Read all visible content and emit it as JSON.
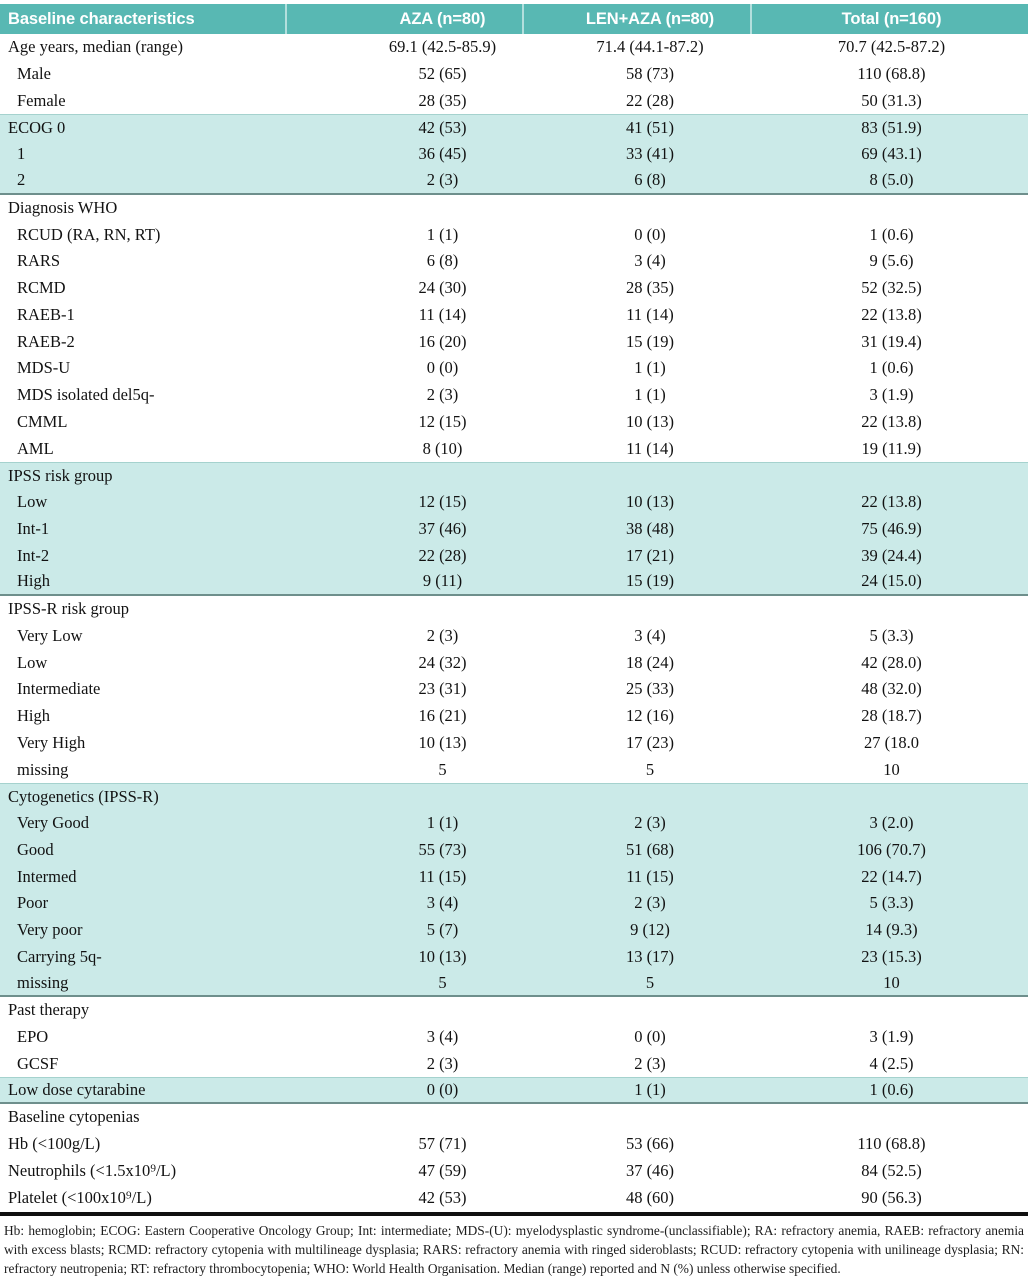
{
  "header": {
    "title": "Baseline characteristics",
    "columns": [
      "AZA (n=80)",
      "LEN+AZA (n=80)",
      "Total (n=160)"
    ]
  },
  "colors": {
    "header_bg": "#58b8b3",
    "band_bg": "#cbeae8",
    "header_text": "#ffffff"
  },
  "rows": [
    {
      "label": "Age years, median (range)",
      "indent": false,
      "band": "white",
      "values": [
        "69.1 (42.5-85.9)",
        "71.4 (44.1-87.2)",
        "70.7 (42.5-87.2)"
      ]
    },
    {
      "label": "Male",
      "indent": true,
      "band": "white",
      "values": [
        "52 (65)",
        "58 (73)",
        "110 (68.8)"
      ]
    },
    {
      "label": "Female",
      "indent": true,
      "band": "white",
      "values": [
        "28 (35)",
        "22 (28)",
        "50 (31.3)"
      ]
    },
    {
      "label": "ECOG 0",
      "indent": false,
      "band": "teal",
      "values": [
        "42 (53)",
        "41 (51)",
        "83 (51.9)"
      ]
    },
    {
      "label": "1",
      "indent": true,
      "band": "teal",
      "values": [
        "36 (45)",
        "33 (41)",
        "69 (43.1)"
      ]
    },
    {
      "label": "2",
      "indent": true,
      "band": "teal",
      "values": [
        "2 (3)",
        "6 (8)",
        "8 (5.0)"
      ]
    },
    {
      "label": "Diagnosis WHO",
      "indent": false,
      "band": "white",
      "values": [
        "",
        "",
        ""
      ]
    },
    {
      "label": "RCUD (RA, RN, RT)",
      "indent": true,
      "band": "white",
      "values": [
        "1 (1)",
        "0 (0)",
        "1 (0.6)"
      ]
    },
    {
      "label": "RARS",
      "indent": true,
      "band": "white",
      "values": [
        "6 (8)",
        "3 (4)",
        "9 (5.6)"
      ]
    },
    {
      "label": "RCMD",
      "indent": true,
      "band": "white",
      "values": [
        "24 (30)",
        "28 (35)",
        "52 (32.5)"
      ]
    },
    {
      "label": "RAEB-1",
      "indent": true,
      "band": "white",
      "values": [
        "11 (14)",
        "11 (14)",
        "22 (13.8)"
      ]
    },
    {
      "label": "RAEB-2",
      "indent": true,
      "band": "white",
      "values": [
        "16 (20)",
        "15 (19)",
        "31 (19.4)"
      ]
    },
    {
      "label": "MDS-U",
      "indent": true,
      "band": "white",
      "values": [
        "0 (0)",
        "1 (1)",
        "1 (0.6)"
      ]
    },
    {
      "label": "MDS isolated del5q-",
      "indent": true,
      "band": "white",
      "values": [
        "2 (3)",
        "1 (1)",
        "3 (1.9)"
      ]
    },
    {
      "label": "CMML",
      "indent": true,
      "band": "white",
      "values": [
        "12 (15)",
        "10 (13)",
        "22 (13.8)"
      ]
    },
    {
      "label": "AML",
      "indent": true,
      "band": "white",
      "values": [
        "8 (10)",
        "11 (14)",
        "19 (11.9)"
      ]
    },
    {
      "label": "IPSS risk group",
      "indent": false,
      "band": "teal",
      "values": [
        "",
        "",
        ""
      ]
    },
    {
      "label": "Low",
      "indent": true,
      "band": "teal",
      "values": [
        "12 (15)",
        "10 (13)",
        "22 (13.8)"
      ]
    },
    {
      "label": "Int-1",
      "indent": true,
      "band": "teal",
      "values": [
        "37 (46)",
        "38 (48)",
        "75 (46.9)"
      ]
    },
    {
      "label": "Int-2",
      "indent": true,
      "band": "teal",
      "values": [
        "22 (28)",
        "17 (21)",
        "39 (24.4)"
      ]
    },
    {
      "label": "High",
      "indent": true,
      "band": "teal",
      "values": [
        "9 (11)",
        "15 (19)",
        "24 (15.0)"
      ]
    },
    {
      "label": "IPSS-R risk group",
      "indent": false,
      "band": "white",
      "values": [
        "",
        "",
        ""
      ]
    },
    {
      "label": "Very Low",
      "indent": true,
      "band": "white",
      "values": [
        "2 (3)",
        "3 (4)",
        "5 (3.3)"
      ]
    },
    {
      "label": "Low",
      "indent": true,
      "band": "white",
      "values": [
        "24 (32)",
        "18 (24)",
        "42 (28.0)"
      ]
    },
    {
      "label": "Intermediate",
      "indent": true,
      "band": "white",
      "values": [
        "23 (31)",
        "25 (33)",
        "48 (32.0)"
      ]
    },
    {
      "label": "High",
      "indent": true,
      "band": "white",
      "values": [
        "16 (21)",
        "12 (16)",
        "28 (18.7)"
      ]
    },
    {
      "label": "Very High",
      "indent": true,
      "band": "white",
      "values": [
        "10 (13)",
        "17 (23)",
        "27 (18.0"
      ]
    },
    {
      "label": "missing",
      "indent": true,
      "band": "white",
      "values": [
        "5",
        "5",
        "10"
      ]
    },
    {
      "label": "Cytogenetics (IPSS-R)",
      "indent": false,
      "band": "teal",
      "values": [
        "",
        "",
        ""
      ]
    },
    {
      "label": "Very Good",
      "indent": true,
      "band": "teal",
      "values": [
        "1 (1)",
        "2 (3)",
        "3 (2.0)"
      ]
    },
    {
      "label": "Good",
      "indent": true,
      "band": "teal",
      "values": [
        "55 (73)",
        "51 (68)",
        "106 (70.7)"
      ]
    },
    {
      "label": "Intermed",
      "indent": true,
      "band": "teal",
      "values": [
        "11 (15)",
        "11 (15)",
        "22 (14.7)"
      ]
    },
    {
      "label": "Poor",
      "indent": true,
      "band": "teal",
      "values": [
        "3 (4)",
        "2 (3)",
        "5 (3.3)"
      ]
    },
    {
      "label": "Very poor",
      "indent": true,
      "band": "teal",
      "values": [
        "5 (7)",
        "9 (12)",
        "14 (9.3)"
      ]
    },
    {
      "label": "Carrying 5q-",
      "indent": true,
      "band": "teal",
      "values": [
        "10 (13)",
        "13 (17)",
        "23 (15.3)"
      ]
    },
    {
      "label": "missing",
      "indent": true,
      "band": "teal",
      "values": [
        "5",
        "5",
        "10"
      ]
    },
    {
      "label": "Past therapy",
      "indent": false,
      "band": "white",
      "values": [
        "",
        "",
        ""
      ]
    },
    {
      "label": "EPO",
      "indent": true,
      "band": "white",
      "values": [
        "3 (4)",
        "0 (0)",
        "3 (1.9)"
      ]
    },
    {
      "label": "GCSF",
      "indent": true,
      "band": "white",
      "values": [
        "2 (3)",
        "2 (3)",
        "4 (2.5)"
      ]
    },
    {
      "label": "Low dose cytarabine",
      "indent": false,
      "band": "teal",
      "values": [
        "0 (0)",
        "1 (1)",
        "1 (0.6)"
      ]
    },
    {
      "label": "Baseline cytopenias",
      "indent": false,
      "band": "white",
      "values": [
        "",
        "",
        ""
      ]
    },
    {
      "label": "Hb (<100g/L)",
      "indent": false,
      "band": "white",
      "values": [
        "57 (71)",
        "53 (66)",
        "110 (68.8)"
      ]
    },
    {
      "label": "Neutrophils (<1.5x10⁹/L)",
      "indent": false,
      "band": "white",
      "values": [
        "47 (59)",
        "37 (46)",
        "84 (52.5)"
      ]
    },
    {
      "label": "Platelet (<100x10⁹/L)",
      "indent": false,
      "band": "white",
      "values": [
        "42 (53)",
        "48 (60)",
        "90 (56.3)"
      ]
    }
  ],
  "footnote": "Hb: hemoglobin; ECOG: Eastern Cooperative Oncology Group; Int: intermediate; MDS-(U): myelodysplastic syndrome-(unclassifiable); RA: refractory anemia, RAEB: refractory anemia with excess blasts; RCMD: refractory cytopenia with multilineage dysplasia; RARS: refractory anemia with ringed sideroblasts; RCUD: refractory cytopenia with unilineage dysplasia; RN: refractory neutropenia; RT: refractory thrombocytopenia; WHO: World Health Organisation. Median (range) reported and N (%) unless otherwise specified."
}
